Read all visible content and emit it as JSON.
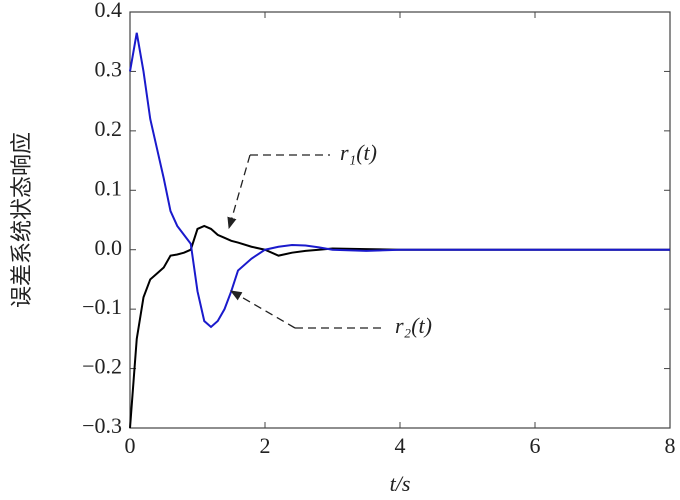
{
  "chart_data": {
    "type": "line",
    "y_label": "误差系统状态响应",
    "x_label": "t/s",
    "x": [
      0,
      0.1,
      0.2,
      0.3,
      0.4,
      0.5,
      0.6,
      0.7,
      0.8,
      0.9,
      1.0,
      1.1,
      1.2,
      1.3,
      1.4,
      1.5,
      1.6,
      1.8,
      2.0,
      2.2,
      2.4,
      2.6,
      2.8,
      3.0,
      3.5,
      4,
      5,
      6,
      7,
      8
    ],
    "series": [
      {
        "name": "r₁(t)",
        "color": "#000000",
        "values": [
          -0.3,
          -0.15,
          -0.08,
          -0.05,
          -0.04,
          -0.03,
          -0.01,
          -0.008,
          -0.005,
          0.0,
          0.035,
          0.04,
          0.035,
          0.025,
          0.02,
          0.015,
          0.012,
          0.005,
          0.0,
          -0.01,
          -0.005,
          -0.002,
          0.0,
          0.002,
          0.001,
          0,
          0,
          0,
          0,
          0
        ]
      },
      {
        "name": "r₂(t)",
        "color": "#1a1acc",
        "values": [
          0.3,
          0.365,
          0.3,
          0.22,
          0.17,
          0.12,
          0.065,
          0.04,
          0.025,
          0.01,
          -0.07,
          -0.12,
          -0.13,
          -0.12,
          -0.1,
          -0.07,
          -0.035,
          -0.015,
          0.0,
          0.005,
          0.008,
          0.007,
          0.004,
          0.0,
          -0.002,
          0,
          0,
          0,
          0,
          0
        ]
      }
    ],
    "xlim": [
      0,
      8
    ],
    "xticks": [
      0,
      2,
      4,
      6,
      8
    ],
    "ylim": [
      -0.3,
      0.4
    ],
    "yticks": [
      {
        "value": -0.3,
        "label": "−0.3"
      },
      {
        "value": -0.2,
        "label": "−0.2"
      },
      {
        "value": -0.1,
        "label": "−0.1"
      },
      {
        "value": 0,
        "label": "0.0"
      },
      0.1,
      0.2,
      0.3,
      0.4
    ]
  }
}
